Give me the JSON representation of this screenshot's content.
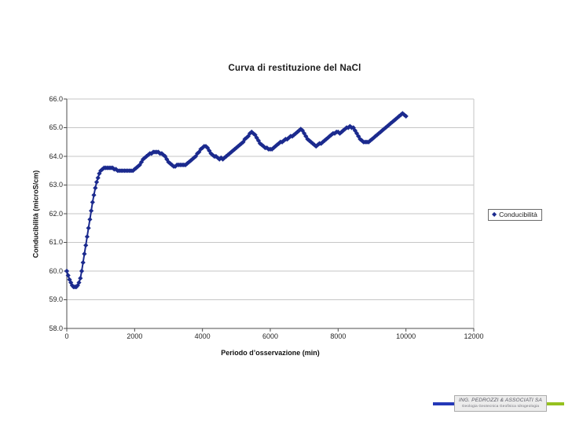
{
  "colors": {
    "series": "#1b2a8e",
    "grid": "#c6c6c6",
    "axis": "#4d4d4d",
    "tick_text": "#262626",
    "logo_blue": "#2438b8",
    "logo_green": "#95c11f"
  },
  "logo": {
    "line1": "ING. PEDROZZI & ASSOCIATI SA",
    "line2": "Geologia Geotecnica Geofisica Idrogeologia"
  },
  "chart_data": {
    "type": "scatter",
    "title": "Curva di restituzione del NaCl",
    "xlabel": "Periodo d’osservazione (min)",
    "ylabel": "Conducibilità (microS/cm)",
    "xlim": [
      0,
      12000
    ],
    "ylim": [
      58.0,
      66.0
    ],
    "grid": "horizontal",
    "x_ticks": [
      0,
      2000,
      4000,
      6000,
      8000,
      10000,
      12000
    ],
    "y_ticks": [
      "66.0",
      "65.0",
      "64.0",
      "63.0",
      "62.0",
      "61.0",
      "60.0",
      "59.0",
      "58.0"
    ],
    "legend": {
      "position": "right",
      "entries": [
        {
          "label": "Conducibilità",
          "marker": "diamond",
          "color": "#1b2a8e"
        }
      ]
    },
    "series": [
      {
        "name": "Conducibilità",
        "points": [
          [
            0,
            60.0
          ],
          [
            40,
            59.85
          ],
          [
            80,
            59.7
          ],
          [
            120,
            59.6
          ],
          [
            160,
            59.5
          ],
          [
            200,
            59.45
          ],
          [
            240,
            59.45
          ],
          [
            280,
            59.45
          ],
          [
            320,
            59.5
          ],
          [
            360,
            59.6
          ],
          [
            400,
            59.75
          ],
          [
            440,
            60.0
          ],
          [
            480,
            60.3
          ],
          [
            520,
            60.6
          ],
          [
            560,
            60.9
          ],
          [
            600,
            61.2
          ],
          [
            640,
            61.5
          ],
          [
            680,
            61.8
          ],
          [
            720,
            62.1
          ],
          [
            760,
            62.4
          ],
          [
            800,
            62.65
          ],
          [
            840,
            62.9
          ],
          [
            880,
            63.1
          ],
          [
            920,
            63.25
          ],
          [
            960,
            63.4
          ],
          [
            1000,
            63.5
          ],
          [
            1050,
            63.55
          ],
          [
            1100,
            63.6
          ],
          [
            1150,
            63.6
          ],
          [
            1200,
            63.6
          ],
          [
            1250,
            63.6
          ],
          [
            1300,
            63.6
          ],
          [
            1350,
            63.6
          ],
          [
            1400,
            63.55
          ],
          [
            1450,
            63.55
          ],
          [
            1500,
            63.5
          ],
          [
            1550,
            63.5
          ],
          [
            1600,
            63.5
          ],
          [
            1650,
            63.5
          ],
          [
            1700,
            63.5
          ],
          [
            1750,
            63.5
          ],
          [
            1800,
            63.5
          ],
          [
            1850,
            63.5
          ],
          [
            1900,
            63.5
          ],
          [
            1950,
            63.5
          ],
          [
            2000,
            63.55
          ],
          [
            2050,
            63.6
          ],
          [
            2100,
            63.65
          ],
          [
            2150,
            63.7
          ],
          [
            2200,
            63.8
          ],
          [
            2250,
            63.9
          ],
          [
            2300,
            63.95
          ],
          [
            2350,
            64.0
          ],
          [
            2400,
            64.05
          ],
          [
            2450,
            64.1
          ],
          [
            2500,
            64.1
          ],
          [
            2550,
            64.15
          ],
          [
            2600,
            64.15
          ],
          [
            2650,
            64.15
          ],
          [
            2700,
            64.15
          ],
          [
            2750,
            64.1
          ],
          [
            2800,
            64.1
          ],
          [
            2850,
            64.05
          ],
          [
            2900,
            64.0
          ],
          [
            2950,
            63.9
          ],
          [
            3000,
            63.8
          ],
          [
            3050,
            63.75
          ],
          [
            3100,
            63.7
          ],
          [
            3150,
            63.65
          ],
          [
            3200,
            63.65
          ],
          [
            3250,
            63.7
          ],
          [
            3300,
            63.7
          ],
          [
            3350,
            63.7
          ],
          [
            3400,
            63.7
          ],
          [
            3450,
            63.7
          ],
          [
            3500,
            63.7
          ],
          [
            3550,
            63.75
          ],
          [
            3600,
            63.8
          ],
          [
            3650,
            63.85
          ],
          [
            3700,
            63.9
          ],
          [
            3750,
            63.95
          ],
          [
            3800,
            64.0
          ],
          [
            3850,
            64.1
          ],
          [
            3900,
            64.15
          ],
          [
            3950,
            64.25
          ],
          [
            4000,
            64.3
          ],
          [
            4050,
            64.35
          ],
          [
            4100,
            64.35
          ],
          [
            4150,
            64.3
          ],
          [
            4200,
            64.2
          ],
          [
            4250,
            64.1
          ],
          [
            4300,
            64.05
          ],
          [
            4350,
            64.0
          ],
          [
            4400,
            64.0
          ],
          [
            4450,
            63.95
          ],
          [
            4500,
            63.9
          ],
          [
            4550,
            63.95
          ],
          [
            4600,
            63.9
          ],
          [
            4650,
            63.95
          ],
          [
            4700,
            64.0
          ],
          [
            4750,
            64.05
          ],
          [
            4800,
            64.1
          ],
          [
            4850,
            64.15
          ],
          [
            4900,
            64.2
          ],
          [
            4950,
            64.25
          ],
          [
            5000,
            64.3
          ],
          [
            5050,
            64.35
          ],
          [
            5100,
            64.4
          ],
          [
            5150,
            64.45
          ],
          [
            5200,
            64.5
          ],
          [
            5250,
            64.6
          ],
          [
            5300,
            64.65
          ],
          [
            5350,
            64.7
          ],
          [
            5400,
            64.8
          ],
          [
            5450,
            64.85
          ],
          [
            5500,
            64.8
          ],
          [
            5550,
            64.75
          ],
          [
            5600,
            64.65
          ],
          [
            5650,
            64.55
          ],
          [
            5700,
            64.45
          ],
          [
            5750,
            64.4
          ],
          [
            5800,
            64.35
          ],
          [
            5850,
            64.3
          ],
          [
            5900,
            64.3
          ],
          [
            5950,
            64.25
          ],
          [
            6000,
            64.25
          ],
          [
            6050,
            64.25
          ],
          [
            6100,
            64.3
          ],
          [
            6150,
            64.35
          ],
          [
            6200,
            64.4
          ],
          [
            6250,
            64.45
          ],
          [
            6300,
            64.5
          ],
          [
            6350,
            64.5
          ],
          [
            6400,
            64.55
          ],
          [
            6450,
            64.6
          ],
          [
            6500,
            64.6
          ],
          [
            6550,
            64.65
          ],
          [
            6600,
            64.7
          ],
          [
            6650,
            64.7
          ],
          [
            6700,
            64.75
          ],
          [
            6750,
            64.8
          ],
          [
            6800,
            64.85
          ],
          [
            6850,
            64.9
          ],
          [
            6900,
            64.95
          ],
          [
            6950,
            64.9
          ],
          [
            7000,
            64.8
          ],
          [
            7050,
            64.7
          ],
          [
            7100,
            64.6
          ],
          [
            7150,
            64.55
          ],
          [
            7200,
            64.5
          ],
          [
            7250,
            64.45
          ],
          [
            7300,
            64.4
          ],
          [
            7350,
            64.35
          ],
          [
            7400,
            64.4
          ],
          [
            7450,
            64.45
          ],
          [
            7500,
            64.45
          ],
          [
            7550,
            64.5
          ],
          [
            7600,
            64.55
          ],
          [
            7650,
            64.6
          ],
          [
            7700,
            64.65
          ],
          [
            7750,
            64.7
          ],
          [
            7800,
            64.75
          ],
          [
            7850,
            64.8
          ],
          [
            7900,
            64.8
          ],
          [
            7950,
            64.85
          ],
          [
            8000,
            64.85
          ],
          [
            8050,
            64.8
          ],
          [
            8100,
            64.85
          ],
          [
            8150,
            64.9
          ],
          [
            8200,
            64.95
          ],
          [
            8250,
            65.0
          ],
          [
            8300,
            65.0
          ],
          [
            8350,
            65.05
          ],
          [
            8400,
            65.0
          ],
          [
            8450,
            65.0
          ],
          [
            8500,
            64.9
          ],
          [
            8550,
            64.8
          ],
          [
            8600,
            64.7
          ],
          [
            8650,
            64.6
          ],
          [
            8700,
            64.55
          ],
          [
            8750,
            64.5
          ],
          [
            8800,
            64.5
          ],
          [
            8850,
            64.5
          ],
          [
            8900,
            64.5
          ],
          [
            8950,
            64.55
          ],
          [
            9000,
            64.6
          ],
          [
            9050,
            64.65
          ],
          [
            9100,
            64.7
          ],
          [
            9150,
            64.75
          ],
          [
            9200,
            64.8
          ],
          [
            9250,
            64.85
          ],
          [
            9300,
            64.9
          ],
          [
            9350,
            64.95
          ],
          [
            9400,
            65.0
          ],
          [
            9450,
            65.05
          ],
          [
            9500,
            65.1
          ],
          [
            9550,
            65.15
          ],
          [
            9600,
            65.2
          ],
          [
            9650,
            65.25
          ],
          [
            9700,
            65.3
          ],
          [
            9750,
            65.35
          ],
          [
            9800,
            65.4
          ],
          [
            9850,
            65.45
          ],
          [
            9900,
            65.5
          ],
          [
            9950,
            65.45
          ],
          [
            10000,
            65.4
          ]
        ]
      }
    ]
  }
}
